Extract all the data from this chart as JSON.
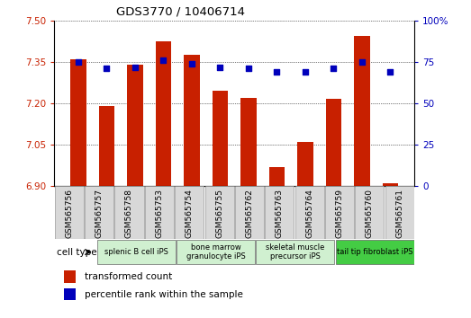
{
  "title": "GDS3770 / 10406714",
  "samples": [
    "GSM565756",
    "GSM565757",
    "GSM565758",
    "GSM565753",
    "GSM565754",
    "GSM565755",
    "GSM565762",
    "GSM565763",
    "GSM565764",
    "GSM565759",
    "GSM565760",
    "GSM565761"
  ],
  "bar_values": [
    7.36,
    7.19,
    7.34,
    7.425,
    7.375,
    7.245,
    7.22,
    6.97,
    7.06,
    7.215,
    7.445,
    6.91
  ],
  "dot_values": [
    75,
    71,
    72,
    76,
    74,
    72,
    71,
    69,
    69,
    71,
    75,
    69
  ],
  "ylim_left": [
    6.9,
    7.5
  ],
  "ylim_right": [
    0,
    100
  ],
  "yticks_left": [
    6.9,
    7.05,
    7.2,
    7.35,
    7.5
  ],
  "yticks_right": [
    0,
    25,
    50,
    75,
    100
  ],
  "bar_color": "#c82000",
  "dot_color": "#0000bb",
  "cell_type_groups": [
    {
      "label": "splenic B cell iPS",
      "start": 0,
      "end": 3,
      "color": "#d0f0d0"
    },
    {
      "label": "bone marrow\ngranulocyte iPS",
      "start": 3,
      "end": 6,
      "color": "#d0f0d0"
    },
    {
      "label": "skeletal muscle\nprecursor iPS",
      "start": 6,
      "end": 9,
      "color": "#d0f0d0"
    },
    {
      "label": "tail tip fibroblast iPS",
      "start": 9,
      "end": 12,
      "color": "#44cc44"
    }
  ],
  "cell_type_label": "cell type",
  "legend_bar_label": "transformed count",
  "legend_dot_label": "percentile rank within the sample",
  "bar_width": 0.55,
  "baseline": 6.9,
  "xlabel_bg": "#d8d8d8",
  "grid_color": "#000000",
  "spine_color": "#000000"
}
